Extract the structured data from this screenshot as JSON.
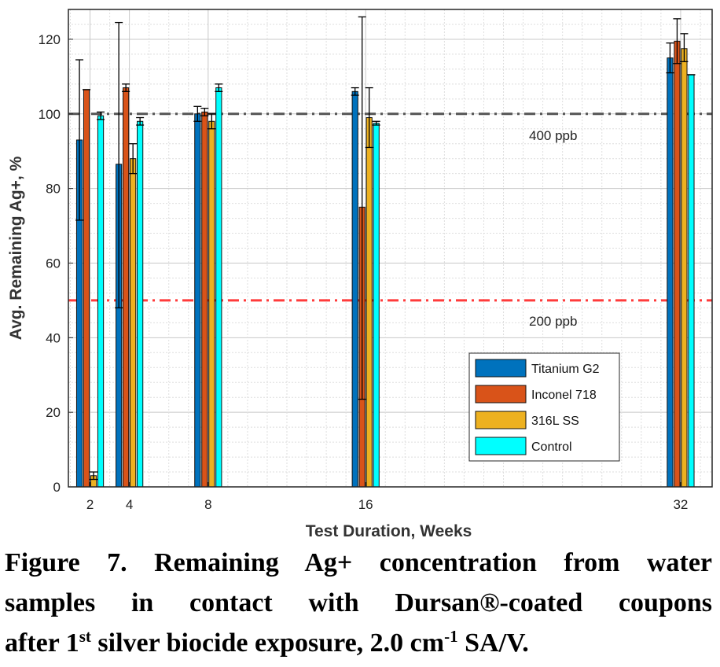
{
  "chart_data": {
    "type": "bar",
    "categories": [
      "2",
      "4",
      "8",
      "16",
      "32"
    ],
    "x": [
      2,
      4,
      8,
      16,
      32
    ],
    "xlabel": "Test Duration, Weeks",
    "ylabel": "Avg. Remaining Ag+, %",
    "ylim": [
      0,
      128
    ],
    "yticks": [
      0,
      20,
      40,
      60,
      80,
      100,
      120
    ],
    "grid": "on (major and minor)",
    "legend_position": "lower-right",
    "series": [
      {
        "name": "Titanium G2",
        "color": "#0072BD",
        "values": [
          93,
          86.5,
          100,
          106,
          115
        ],
        "err_low": [
          71.5,
          48,
          98,
          105,
          111
        ],
        "err_high": [
          114.5,
          124.5,
          102,
          107,
          119
        ]
      },
      {
        "name": "Inconel 718",
        "color": "#D95319",
        "values": [
          106.5,
          107,
          100.5,
          75,
          119.5
        ],
        "err_low": [
          106.5,
          106,
          99.5,
          23.5,
          113.5
        ],
        "err_high": [
          106.5,
          108,
          101.5,
          126,
          125.5
        ]
      },
      {
        "name": "316L SS",
        "color": "#EDB120",
        "values": [
          3,
          88,
          98,
          99,
          117.5
        ],
        "err_low": [
          2,
          84,
          96,
          91,
          114
        ],
        "err_high": [
          4,
          92,
          100,
          107,
          121.5
        ]
      },
      {
        "name": "Control",
        "color": "#00FFFF",
        "values": [
          99.5,
          98,
          107,
          97.5,
          110.5
        ],
        "err_low": [
          98.5,
          97,
          106,
          97,
          110.5
        ],
        "err_high": [
          100.5,
          99,
          108,
          98,
          110.5
        ]
      }
    ],
    "reference_lines": [
      {
        "value": 100,
        "label": "400 ppb",
        "color": "#555555",
        "style": "dash-dot"
      },
      {
        "value": 50,
        "label": "200 ppb",
        "color": "#FF3B3B",
        "style": "dash-dot"
      }
    ]
  },
  "caption": {
    "line1": "Figure 7. Remaining Ag+ concentration from water",
    "line2": "samples in contact with Dursan®-coated coupons",
    "line3_a": "after 1",
    "line3_sup1": "st",
    "line3_b": " silver biocide exposure, 2.0 cm",
    "line3_sup2": "-1",
    "line3_c": " SA/V."
  }
}
